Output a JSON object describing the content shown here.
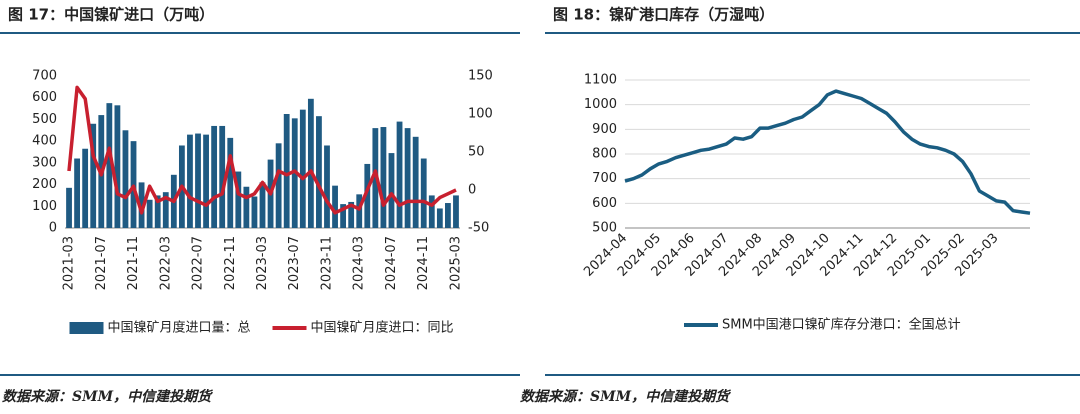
{
  "chart_data": [
    {
      "type": "bar",
      "title": "图 17：中国镍矿进口（万吨）",
      "source": "数据来源：SMM，中信建投期货",
      "categories": [
        "2021-03",
        null,
        null,
        null,
        "2021-07",
        null,
        null,
        null,
        "2021-11",
        null,
        null,
        null,
        "2022-03",
        null,
        null,
        null,
        "2022-07",
        null,
        null,
        null,
        "2022-11",
        null,
        null,
        null,
        "2023-03",
        null,
        null,
        null,
        "2023-07",
        null,
        null,
        null,
        "2023-11",
        null,
        null,
        null,
        "2024-03",
        null,
        null,
        null,
        "2024-07",
        null,
        null,
        null,
        "2024-11",
        null,
        null,
        null,
        "2025-03"
      ],
      "series": [
        {
          "name": "中国镍矿月度进口量：总",
          "type": "bar",
          "color": "#1f5a82",
          "axis": "y",
          "values": [
            185,
            320,
            365,
            480,
            520,
            575,
            565,
            450,
            400,
            210,
            130,
            150,
            165,
            245,
            380,
            430,
            435,
            430,
            470,
            470,
            415,
            260,
            190,
            145,
            210,
            315,
            390,
            525,
            505,
            545,
            595,
            515,
            380,
            195,
            110,
            120,
            155,
            295,
            460,
            465,
            345,
            490,
            460,
            420,
            320,
            150,
            90,
            115,
            150
          ]
        },
        {
          "name": "中国镍矿月度进口：同比",
          "type": "line",
          "color": "#c8202f",
          "axis": "y2",
          "values": [
            25,
            135,
            120,
            45,
            20,
            55,
            -5,
            -10,
            5,
            -30,
            5,
            -15,
            -10,
            -15,
            5,
            -10,
            -15,
            -20,
            -10,
            -5,
            45,
            -5,
            -10,
            -5,
            10,
            -5,
            25,
            20,
            25,
            15,
            25,
            5,
            -15,
            -30,
            -25,
            -20,
            -25,
            0,
            25,
            -20,
            -5,
            -20,
            -15,
            -15,
            -15,
            -20,
            -10,
            -5,
            0
          ]
        }
      ],
      "ylim": [
        0,
        700
      ],
      "yticks": [
        0,
        100,
        200,
        300,
        400,
        500,
        600,
        700
      ],
      "y2lim": [
        -50,
        150
      ],
      "y2ticks": [
        -50,
        0,
        50,
        100,
        150
      ],
      "grid": false,
      "legend": "bottom"
    },
    {
      "type": "line",
      "title": "图 18：镍矿港口库存（万湿吨）",
      "source": "数据来源：SMM，中信建投期货",
      "categories": [
        "2024-04",
        null,
        null,
        null,
        "2024-05",
        null,
        null,
        null,
        "2024-06",
        null,
        null,
        null,
        "2024-07",
        null,
        null,
        null,
        "2024-08",
        null,
        null,
        null,
        "2024-09",
        null,
        null,
        null,
        "2024-10",
        null,
        null,
        null,
        "2024-11",
        null,
        null,
        null,
        "2024-12",
        null,
        null,
        null,
        "2025-01",
        null,
        null,
        null,
        "2025-02",
        null,
        null,
        null,
        "2025-03",
        null,
        null,
        null,
        null
      ],
      "series": [
        {
          "name": "SMM中国港口镍矿库存分港口：全国总计",
          "color": "#1a5d82",
          "values": [
            690,
            700,
            715,
            740,
            760,
            770,
            785,
            795,
            805,
            815,
            820,
            830,
            840,
            865,
            860,
            870,
            905,
            905,
            915,
            925,
            940,
            950,
            975,
            1000,
            1040,
            1055,
            1045,
            1035,
            1025,
            1005,
            985,
            965,
            930,
            890,
            860,
            840,
            830,
            825,
            815,
            800,
            770,
            720,
            650,
            630,
            610,
            605,
            570,
            565,
            560
          ]
        }
      ],
      "ylim": [
        500,
        1100
      ],
      "yticks": [
        500,
        600,
        700,
        800,
        900,
        1000,
        1100
      ],
      "grid": true,
      "legend": "bottom"
    }
  ]
}
